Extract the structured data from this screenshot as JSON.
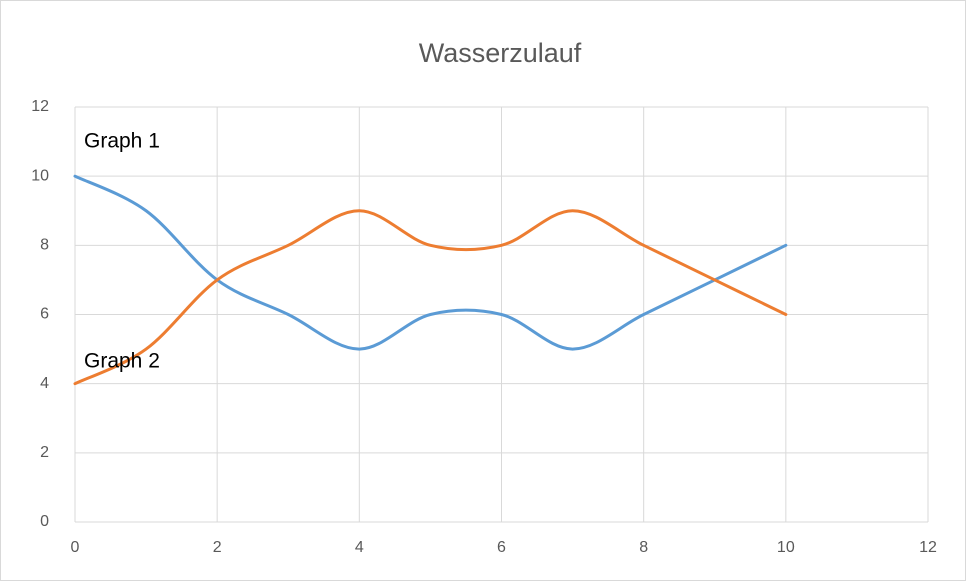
{
  "chart_data": {
    "type": "line",
    "title": "Wasserzulauf",
    "smooth": true,
    "grid": true,
    "x": [
      0,
      1,
      2,
      3,
      4,
      5,
      6,
      7,
      8,
      9,
      10
    ],
    "series": [
      {
        "name": "Graph 1",
        "color": "#5b9bd5",
        "values": [
          10,
          9,
          7,
          6,
          5,
          6,
          6,
          5,
          6,
          7,
          8
        ]
      },
      {
        "name": "Graph 2",
        "color": "#ed7d31",
        "values": [
          4,
          5,
          7,
          8,
          9,
          8,
          8,
          9,
          8,
          7,
          6
        ]
      }
    ],
    "xlim": [
      0,
      12
    ],
    "xticks": [
      0,
      2,
      4,
      6,
      8,
      10,
      12
    ],
    "ylim": [
      0,
      12
    ],
    "yticks": [
      0,
      2,
      4,
      6,
      8,
      10,
      12
    ]
  }
}
